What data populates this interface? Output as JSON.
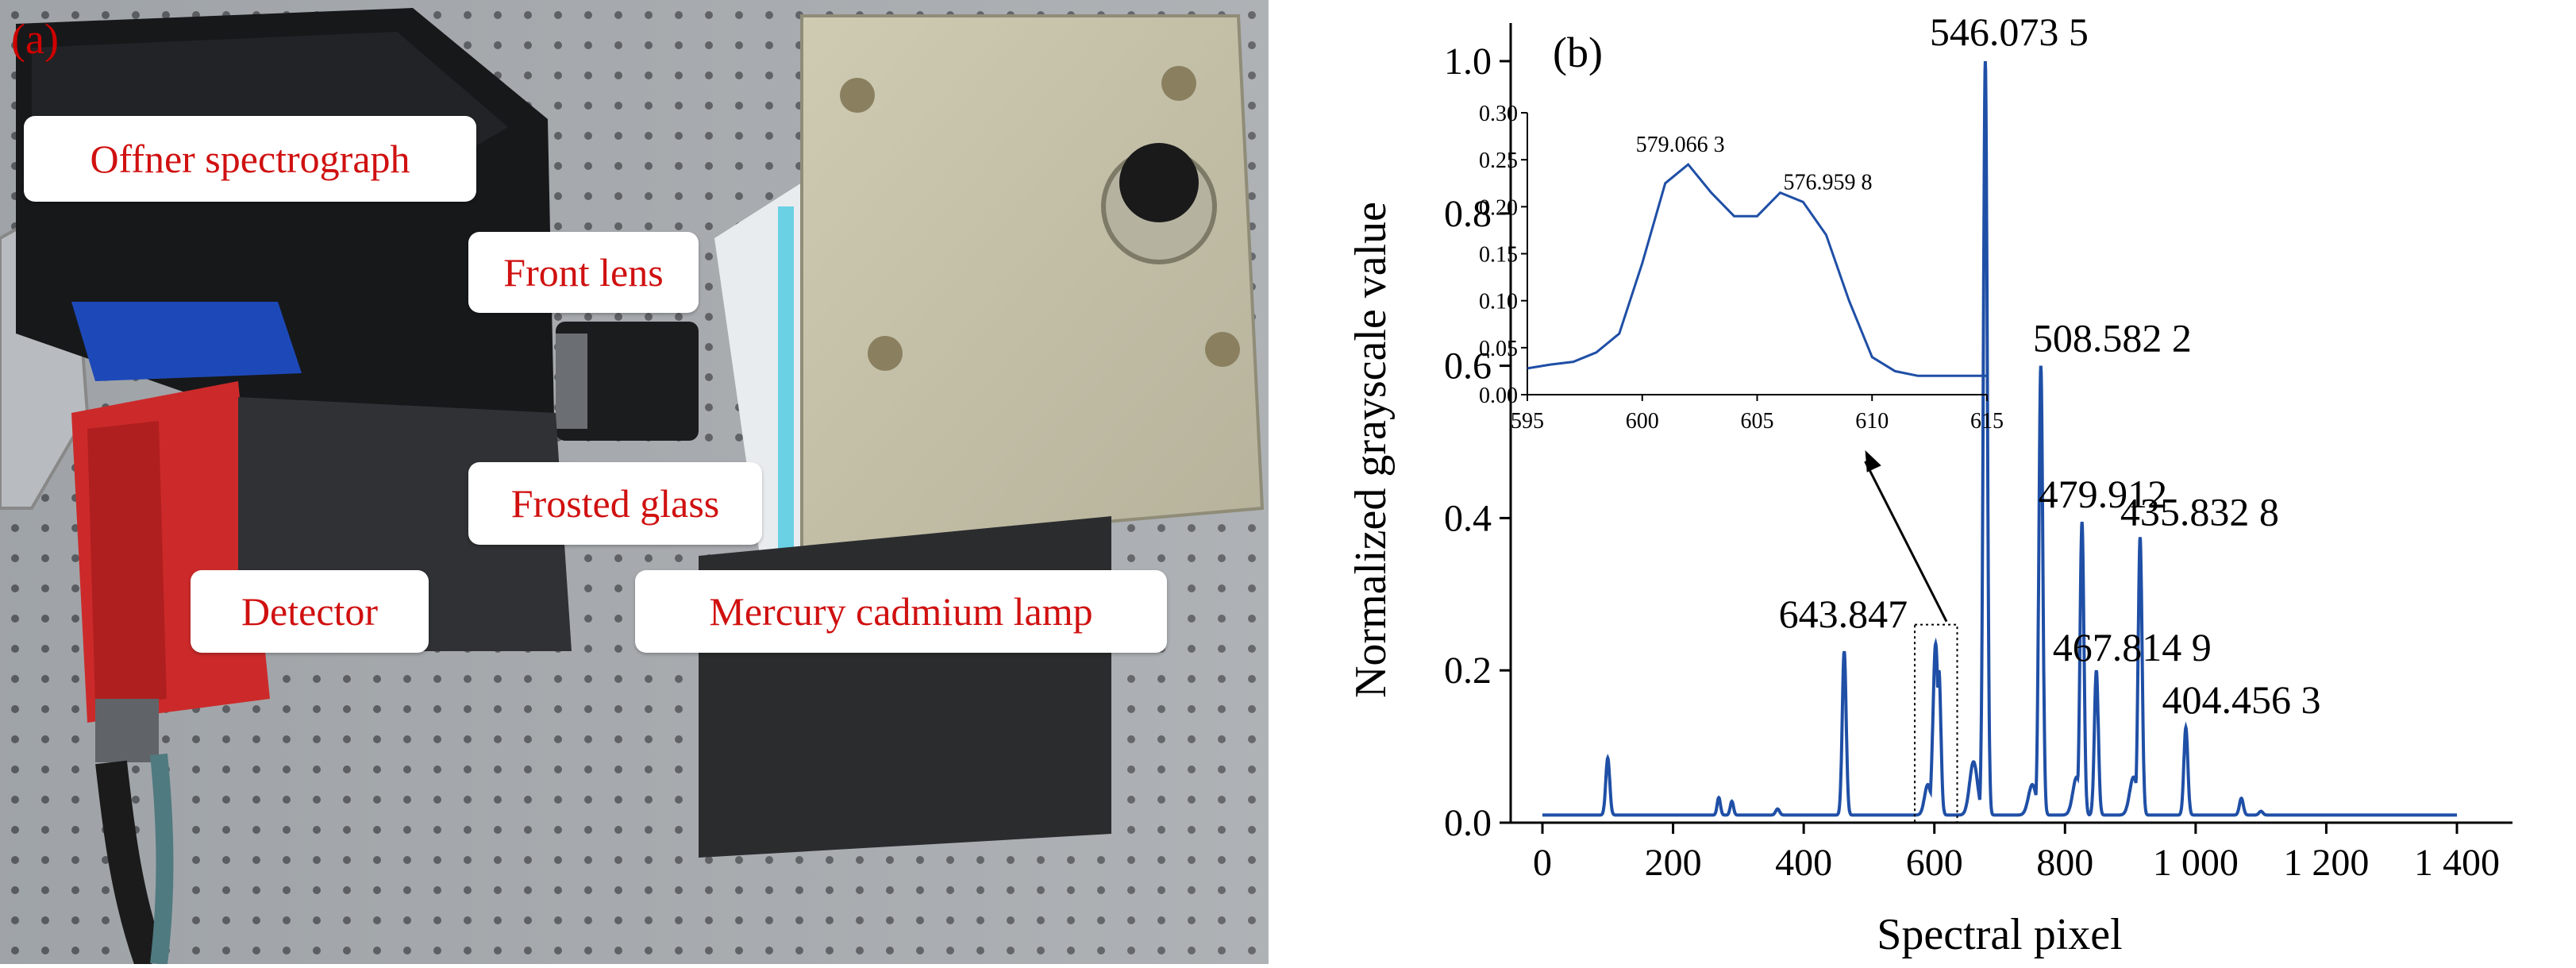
{
  "panel_a": {
    "letter": "(a)",
    "labels": {
      "spectrograph": "Offner spectrograph",
      "front_lens": "Front lens",
      "frosted_glass": "Frosted glass",
      "detector": "Detector",
      "lamp": "Mercury cadmium lamp"
    }
  },
  "panel_b": {
    "letter": "(b)"
  },
  "chart_data": [
    {
      "type": "line",
      "xlabel": "Spectral pixel",
      "ylabel": "Normalized grayscale value",
      "xlim": [
        0,
        1400
      ],
      "ylim": [
        0,
        1.05
      ],
      "x_ticks": [
        0,
        200,
        400,
        600,
        800,
        1000,
        1200,
        1400
      ],
      "x_tick_labels": [
        "0",
        "200",
        "400",
        "600",
        "800",
        "1 000",
        "1 200",
        "1 400"
      ],
      "y_ticks": [
        0.0,
        0.2,
        0.4,
        0.6,
        0.8,
        1.0
      ],
      "y_tick_labels": [
        "0.0",
        "0.2",
        "0.4",
        "0.6",
        "0.8",
        "1.0"
      ],
      "line_color": "#1f4fa6",
      "baseline": 0.01,
      "peaks": [
        {
          "x": 100,
          "y": 0.085,
          "w": 3
        },
        {
          "x": 270,
          "y": 0.033,
          "w": 2.5
        },
        {
          "x": 290,
          "y": 0.028,
          "w": 2.5
        },
        {
          "x": 360,
          "y": 0.018,
          "w": 3
        },
        {
          "x": 462,
          "y": 0.225,
          "w": 3
        },
        {
          "x": 590,
          "y": 0.05,
          "w": 5
        },
        {
          "x": 602,
          "y": 0.235,
          "w": 4
        },
        {
          "x": 607,
          "y": 0.2,
          "w": 3
        },
        {
          "x": 660,
          "y": 0.08,
          "w": 6
        },
        {
          "x": 678,
          "y": 1.0,
          "w": 3
        },
        {
          "x": 750,
          "y": 0.05,
          "w": 6
        },
        {
          "x": 763,
          "y": 0.6,
          "w": 3
        },
        {
          "x": 818,
          "y": 0.06,
          "w": 6
        },
        {
          "x": 826,
          "y": 0.395,
          "w": 3
        },
        {
          "x": 848,
          "y": 0.2,
          "w": 3
        },
        {
          "x": 905,
          "y": 0.06,
          "w": 6
        },
        {
          "x": 915,
          "y": 0.375,
          "w": 3
        },
        {
          "x": 985,
          "y": 0.125,
          "w": 3
        },
        {
          "x": 1070,
          "y": 0.032,
          "w": 3
        },
        {
          "x": 1100,
          "y": 0.015,
          "w": 3
        }
      ],
      "annotations": [
        {
          "text": "546.073 5",
          "x": 678,
          "y": 1.0
        },
        {
          "text": "508.582 2",
          "x": 763,
          "y": 0.6
        },
        {
          "text": "479.912",
          "x": 826,
          "y": 0.395
        },
        {
          "text": "435.832 8",
          "x": 915,
          "y": 0.375
        },
        {
          "text": "467.814 9",
          "x": 848,
          "y": 0.2
        },
        {
          "text": "404.456 3",
          "x": 985,
          "y": 0.125
        },
        {
          "text": "643.847",
          "x": 462,
          "y": 0.225
        }
      ],
      "zoom_box": {
        "x": [
          570,
          635
        ],
        "y": [
          0,
          0.26
        ]
      }
    },
    {
      "type": "line",
      "role": "inset",
      "xlim": [
        595,
        615
      ],
      "ylim": [
        0,
        0.3
      ],
      "x_ticks": [
        595,
        600,
        605,
        610,
        615
      ],
      "y_ticks": [
        0.0,
        0.05,
        0.1,
        0.15,
        0.2,
        0.25,
        0.3
      ],
      "y_tick_labels": [
        "0.00",
        "0.05",
        "0.10",
        "0.15",
        "0.20",
        "0.25",
        "0.30"
      ],
      "x": [
        595,
        596,
        597,
        598,
        599,
        600,
        601,
        602,
        603,
        604,
        605,
        606,
        607,
        608,
        609,
        610,
        611,
        612,
        613,
        614,
        615
      ],
      "y": [
        0.028,
        0.032,
        0.035,
        0.045,
        0.065,
        0.14,
        0.225,
        0.245,
        0.215,
        0.19,
        0.19,
        0.215,
        0.205,
        0.17,
        0.1,
        0.04,
        0.025,
        0.02,
        0.02,
        0.02,
        0.02
      ],
      "annotations": [
        {
          "text": "579.066 3",
          "x": 602,
          "y": 0.245
        },
        {
          "text": "576.959 8",
          "x": 606,
          "y": 0.215
        }
      ]
    }
  ]
}
